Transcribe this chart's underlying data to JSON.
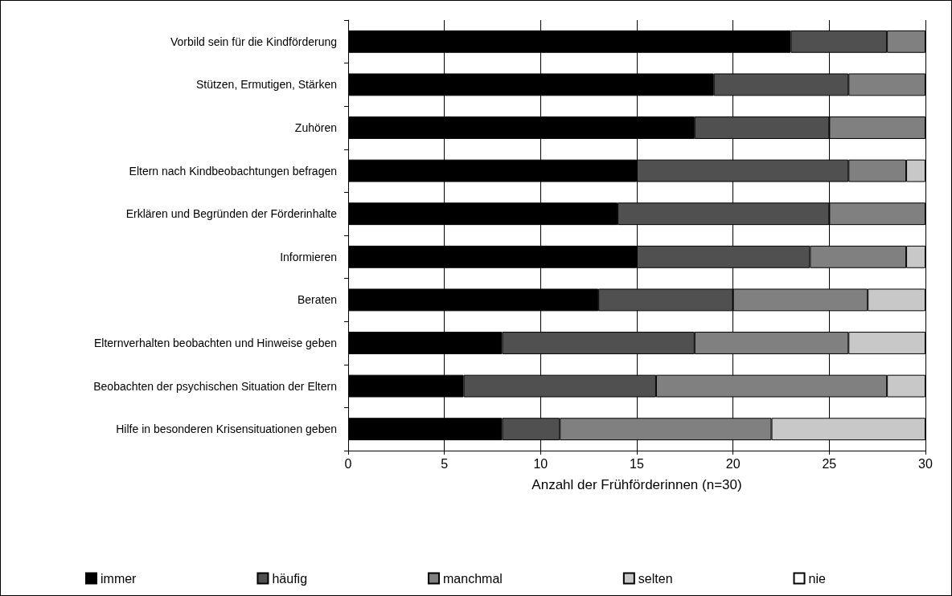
{
  "chart_data": {
    "type": "bar",
    "orientation": "horizontal",
    "stacked": true,
    "xlabel": "Anzahl der Frühförderinnen (n=30)",
    "categories": [
      "Vorbild sein für die Kindförderung",
      "Stützen, Ermutigen, Stärken",
      "Zuhören",
      "Eltern nach Kindbeobachtungen befragen",
      "Erklären und Begründen der Förderinhalte",
      "Informieren",
      "Beraten",
      "Elternverhalten beobachten und Hinweise geben",
      "Beobachten der psychischen Situation der Eltern",
      "Hilfe in besonderen Krisensituationen geben"
    ],
    "series": [
      {
        "name": "immer",
        "color": "#000000",
        "values": [
          23,
          19,
          18,
          15,
          14,
          15,
          13,
          8,
          6,
          8
        ]
      },
      {
        "name": "häufig",
        "color": "#505050",
        "values": [
          5,
          7,
          7,
          11,
          11,
          9,
          7,
          10,
          10,
          3
        ]
      },
      {
        "name": "manchmal",
        "color": "#808080",
        "values": [
          2,
          4,
          5,
          3,
          5,
          5,
          7,
          8,
          12,
          11
        ]
      },
      {
        "name": "selten",
        "color": "#c8c8c8",
        "values": [
          0,
          0,
          0,
          1,
          0,
          1,
          3,
          4,
          2,
          8
        ]
      },
      {
        "name": "nie",
        "color": "#ffffff",
        "values": [
          0,
          0,
          0,
          0,
          0,
          0,
          0,
          0,
          0,
          0
        ]
      }
    ],
    "xlim": [
      0,
      30
    ],
    "xticks": [
      0,
      5,
      10,
      15,
      20,
      25,
      30
    ],
    "grid": "x",
    "legend": "bottom"
  }
}
